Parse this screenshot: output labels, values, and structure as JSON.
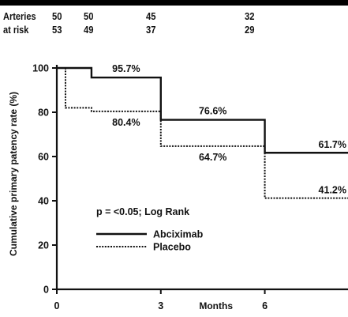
{
  "risk_table": {
    "label_line1": "Arteries",
    "label_line2": "at risk",
    "row1": [
      "50",
      "50",
      "45",
      "32"
    ],
    "row2": [
      "53",
      "49",
      "37",
      "29"
    ]
  },
  "chart_data": {
    "type": "line",
    "step": true,
    "xlabel": "Months",
    "ylabel": "Cumulative primary patency rate (%)",
    "xlim": [
      0,
      8.4
    ],
    "ylim": [
      0,
      100
    ],
    "xticks": [
      "0",
      "3",
      "6"
    ],
    "yticks": [
      "0",
      "20",
      "40",
      "60",
      "80",
      "100"
    ],
    "grid": false,
    "legend_placement": "lower-left",
    "annotation": "p = <0.05; Log Rank",
    "series": [
      {
        "name": "Abciximab",
        "style": "solid",
        "x": [
          0,
          1,
          3,
          6,
          8.4
        ],
        "y": [
          100,
          95.7,
          76.6,
          61.7,
          61.7
        ]
      },
      {
        "name": "Placebo",
        "style": "dotted",
        "x": [
          0,
          0.25,
          1,
          3,
          6,
          8.4
        ],
        "y": [
          100,
          82,
          80.4,
          64.7,
          41.2,
          41.2
        ]
      }
    ],
    "data_labels": [
      {
        "text": "95.7%",
        "series": "Abciximab"
      },
      {
        "text": "80.4%",
        "series": "Placebo"
      },
      {
        "text": "76.6%",
        "series": "Abciximab"
      },
      {
        "text": "64.7%",
        "series": "Placebo"
      },
      {
        "text": "61.7%",
        "series": "Abciximab"
      },
      {
        "text": "41.2%",
        "series": "Placebo"
      }
    ],
    "colors": {
      "line": "#111111",
      "background": "#ffffff"
    }
  }
}
